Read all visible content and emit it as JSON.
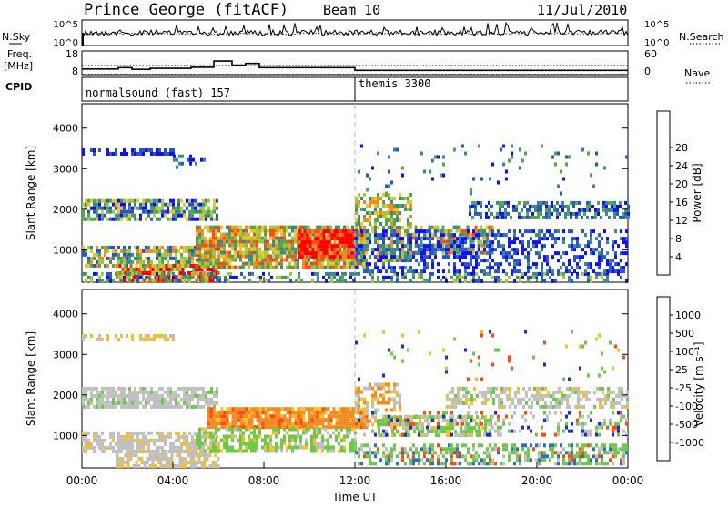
{
  "header": {
    "station": "Prince George (fitACF)",
    "beam": "Beam 10",
    "date": "11/Jul/2010"
  },
  "side_labels": {
    "nsky": "N.Sky",
    "freq_line1": "Freq.",
    "freq_line2": "[MHz]",
    "cpid": "CPID",
    "nsearch": "N.Search",
    "nave": "Nave"
  },
  "cpid_segments": [
    {
      "label": "normalsound (fast) 157",
      "start_hour": 0
    },
    {
      "label": "themis 3300",
      "start_hour": 12
    }
  ],
  "chart_data": [
    {
      "type": "line",
      "name": "noise-panel",
      "left_ticks": [
        "10^5",
        "10^0"
      ],
      "right_ticks": [
        "10^5",
        "10^0"
      ]
    },
    {
      "type": "line",
      "name": "frequency-panel",
      "left_ticks": [
        "18",
        "8"
      ],
      "right_ticks": [
        "60",
        "0"
      ],
      "freq_steps": [
        {
          "x0": 0.0,
          "x1": 1.6,
          "y": 10.2
        },
        {
          "x0": 1.6,
          "x1": 2.2,
          "y": 11.0
        },
        {
          "x0": 2.2,
          "x1": 3.0,
          "y": 10.0
        },
        {
          "x0": 3.0,
          "x1": 4.8,
          "y": 10.6
        },
        {
          "x0": 4.8,
          "x1": 5.8,
          "y": 11.2
        },
        {
          "x0": 5.8,
          "x1": 6.6,
          "y": 14.8
        },
        {
          "x0": 6.6,
          "x1": 7.2,
          "y": 12.4
        },
        {
          "x0": 7.2,
          "x1": 7.8,
          "y": 13.4
        },
        {
          "x0": 7.8,
          "x1": 12.0,
          "y": 11.0
        },
        {
          "x0": 12.0,
          "x1": 24.0,
          "y": 9.4
        }
      ],
      "nsearch_level": 12.2,
      "nave_level": 9.2
    },
    {
      "type": "heatmap",
      "name": "power",
      "ylabel": "Slant Range [km]",
      "yticks": [
        "1000",
        "2000",
        "3000",
        "4000"
      ],
      "ylim": [
        200,
        4600
      ],
      "colorbar_label": "Power [dB]",
      "colorbar_ticks": [
        "4",
        "8",
        "12",
        "16",
        "20",
        "24",
        "28"
      ],
      "colorbar_colors": [
        "#1010ff",
        "#2a55c8",
        "#3a8a8a",
        "#4fa84a",
        "#9ccc3c",
        "#f2c22a",
        "#f58a1e",
        "#ff4a10",
        "#ff0000"
      ]
    },
    {
      "type": "heatmap",
      "name": "velocity",
      "ylabel": "Slant Range [km]",
      "yticks": [
        "1000",
        "2000",
        "3000",
        "4000"
      ],
      "ylim": [
        200,
        4600
      ],
      "colorbar_label": "Velocity [m s⁻¹]",
      "colorbar_ticks": [
        "1000",
        "500",
        "100",
        "25",
        "-25",
        "-100",
        "-500",
        "-1000"
      ],
      "colorbar_colors": [
        "#1a2fd6",
        "#2f6ec0",
        "#3a9a7a",
        "#6cc94a",
        "#c0c0c0",
        "#f5c020",
        "#f58a1e",
        "#ff4a10",
        "#ff0000"
      ]
    }
  ],
  "xaxis": {
    "label": "Time UT",
    "ticks": [
      "00:00",
      "04:00",
      "08:00",
      "12:00",
      "16:00",
      "20:00",
      "00:00"
    ]
  }
}
